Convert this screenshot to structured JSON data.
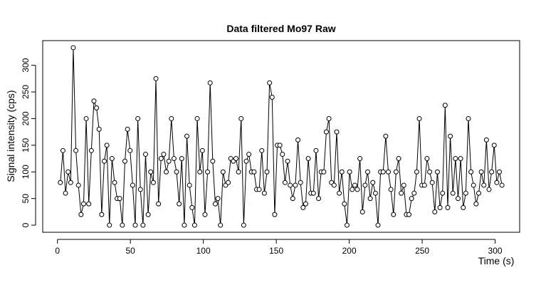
{
  "chart_data": {
    "type": "line",
    "title": "Data filtered Mo97 Raw",
    "x_label": "Time (s)",
    "y_label": "Signal intensity (cps)",
    "markers": true,
    "color": "#000000",
    "x": [
      2.0,
      3.77,
      5.54,
      7.31,
      9.08,
      10.85,
      12.62,
      14.39,
      16.16,
      17.93,
      19.7,
      21.47,
      23.24,
      25.01,
      26.78,
      28.55,
      30.32,
      32.09,
      33.86,
      35.63,
      37.4,
      39.17,
      40.94,
      42.71,
      44.48,
      46.25,
      48.02,
      49.79,
      51.56,
      53.33,
      55.1,
      56.87,
      58.64,
      60.41,
      62.18,
      63.95,
      65.72,
      67.49,
      69.26,
      71.03,
      72.8,
      74.57,
      76.34,
      78.11,
      79.88,
      81.65,
      83.42,
      85.19,
      86.96,
      88.73,
      90.5,
      92.27,
      94.04,
      95.81,
      97.58,
      99.35,
      101.12,
      102.89,
      104.66,
      106.43,
      108.2,
      109.97,
      111.74,
      113.51,
      115.28,
      117.05,
      118.82,
      120.59,
      122.36,
      124.13,
      125.9,
      127.67,
      129.44,
      131.21,
      132.98,
      134.75,
      136.52,
      138.29,
      140.06,
      141.83,
      143.6,
      145.37,
      147.14,
      148.91,
      150.68,
      152.45,
      154.22,
      155.99,
      157.76,
      159.53,
      161.3,
      163.07,
      164.84,
      166.61,
      168.38,
      170.15,
      171.92,
      173.69,
      175.46,
      177.23,
      179.0,
      180.77,
      182.54,
      184.31,
      186.08,
      187.85,
      189.62,
      191.39,
      193.16,
      194.93,
      196.7,
      198.47,
      200.24,
      202.01,
      203.78,
      205.55,
      207.32,
      209.09,
      210.86,
      212.63,
      214.4,
      216.17,
      217.94,
      219.71,
      221.48,
      223.25,
      225.02,
      226.79,
      228.56,
      230.33,
      232.1,
      233.87,
      235.64,
      237.41,
      239.18,
      240.95,
      242.72,
      244.49,
      246.26,
      248.03,
      249.8,
      251.57,
      253.34,
      255.11,
      256.88,
      258.65,
      260.42,
      262.19,
      263.96,
      265.73,
      267.5,
      269.27,
      271.04,
      272.81,
      274.58,
      276.35,
      278.12,
      279.89,
      281.66,
      283.43,
      285.2,
      286.97,
      288.74,
      290.51,
      292.28,
      294.05,
      295.82,
      297.59,
      299.36,
      301.13,
      302.9,
      304.67
    ],
    "values": [
      80,
      140,
      60,
      100,
      80,
      333,
      140,
      75,
      20,
      40,
      200,
      40,
      140,
      233,
      220,
      180,
      20,
      120,
      150,
      0,
      125,
      80,
      50,
      50,
      0,
      120,
      180,
      140,
      75,
      0,
      200,
      67,
      0,
      133,
      20,
      100,
      80,
      275,
      40,
      125,
      133,
      100,
      120,
      200,
      125,
      100,
      40,
      125,
      0,
      167,
      75,
      33,
      0,
      200,
      100,
      140,
      20,
      100,
      267,
      120,
      40,
      50,
      0,
      100,
      75,
      80,
      125,
      120,
      125,
      100,
      200,
      0,
      120,
      133,
      100,
      100,
      67,
      67,
      140,
      60,
      100,
      267,
      240,
      20,
      150,
      150,
      133,
      80,
      120,
      75,
      50,
      75,
      160,
      80,
      33,
      40,
      125,
      60,
      60,
      140,
      50,
      100,
      100,
      175,
      200,
      80,
      75,
      175,
      60,
      100,
      40,
      0,
      100,
      67,
      75,
      67,
      125,
      25,
      75,
      100,
      50,
      80,
      60,
      0,
      100,
      100,
      167,
      100,
      67,
      20,
      100,
      125,
      60,
      75,
      20,
      20,
      50,
      60,
      100,
      200,
      75,
      75,
      125,
      100,
      80,
      25,
      100,
      33,
      60,
      225,
      33,
      167,
      60,
      125,
      50,
      125,
      33,
      60,
      200,
      100,
      75,
      40,
      60,
      100,
      75,
      160,
      67,
      100,
      150,
      80,
      100,
      75
    ],
    "xlim": [
      -10.1,
      316.8
    ],
    "ylim": [
      -13.3,
      346.3
    ],
    "xticks": [
      0,
      50,
      100,
      150,
      200,
      250,
      300
    ],
    "yticks": [
      0,
      50,
      100,
      150,
      200,
      250,
      300
    ]
  }
}
